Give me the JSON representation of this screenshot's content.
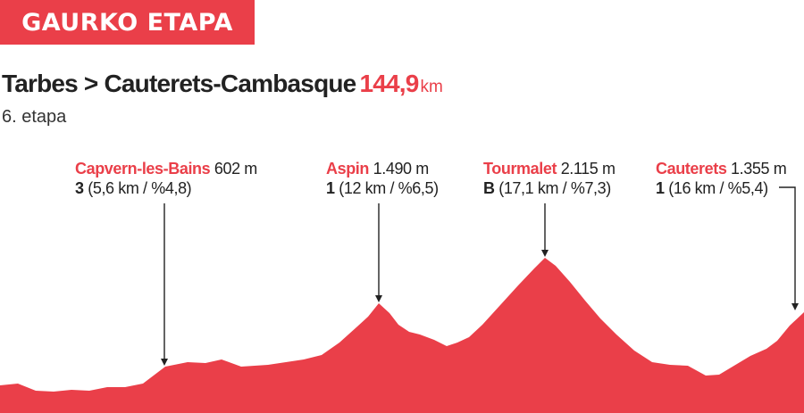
{
  "header": {
    "banner": "GAURKO ETAPA"
  },
  "stage": {
    "route": "Tarbes > Cauterets-Cambasque",
    "distance": "144,9",
    "unit": "km",
    "number_label": "6. etapa"
  },
  "colors": {
    "accent": "#ea3f49",
    "text": "#222222"
  },
  "climbs": [
    {
      "name": "Capvern-les-Bains",
      "altitude": "602 m",
      "category": "3",
      "detail": "(5,6 km / %4,8)"
    },
    {
      "name": "Aspin",
      "altitude": "1.490 m",
      "category": "1",
      "detail": "(12 km / %6,5)"
    },
    {
      "name": "Tourmalet",
      "altitude": "2.115 m",
      "category": "B",
      "detail": "(17,1 km / %7,3)"
    },
    {
      "name": "Cauterets",
      "altitude": "1.355 m",
      "category": "1",
      "detail": "(16 km / %5,4)"
    }
  ]
}
